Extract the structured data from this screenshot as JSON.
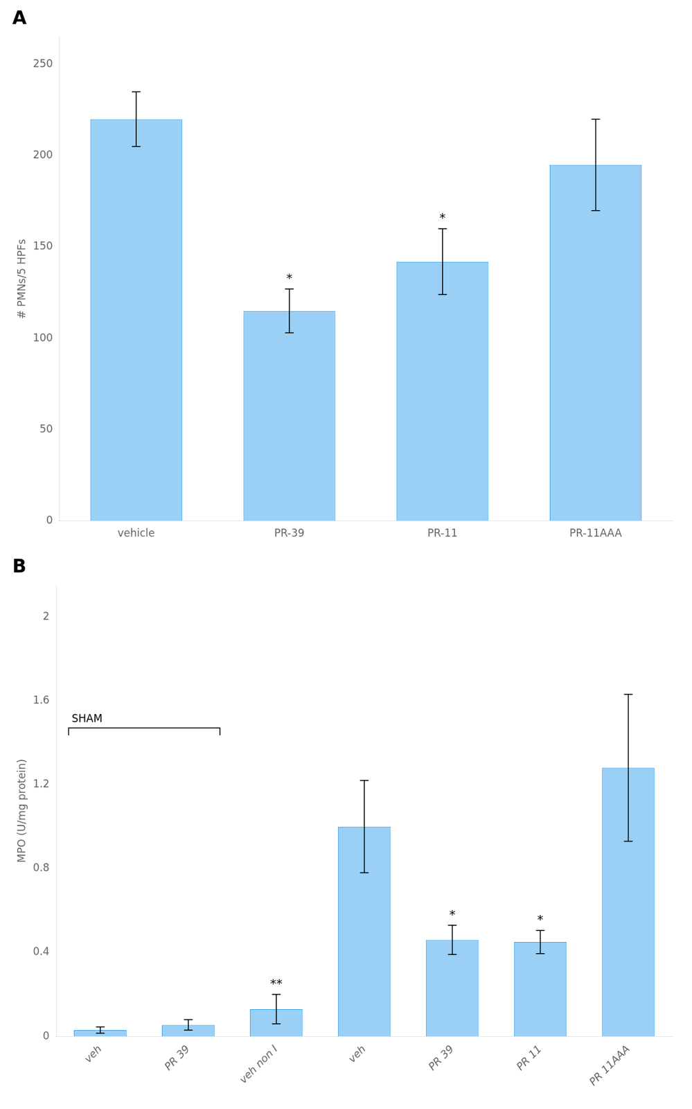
{
  "chart_data": [
    {
      "type": "bar",
      "panel_label": "A",
      "categories": [
        "vehicle",
        "PR-39",
        "PR-11",
        "PR-11AAA"
      ],
      "values": [
        220,
        115,
        142,
        195
      ],
      "errors": [
        15,
        12,
        18,
        25
      ],
      "annotations": [
        null,
        "*",
        "*",
        null
      ],
      "ylabel": "# PMNs/5 HPFs",
      "ylim": [
        0,
        265
      ],
      "yticks": [
        0,
        50,
        100,
        150,
        200,
        250
      ],
      "grid": false,
      "legend": false
    },
    {
      "type": "bar",
      "panel_label": "B",
      "categories": [
        "veh",
        "PR 39",
        "veh non I",
        "veh",
        "PR 39",
        "PR 11",
        "PR 11AAA"
      ],
      "values": [
        0.03,
        0.055,
        0.13,
        1.0,
        0.46,
        0.45,
        1.28
      ],
      "errors": [
        0.015,
        0.025,
        0.07,
        0.22,
        0.07,
        0.055,
        0.35
      ],
      "annotations": [
        null,
        null,
        "**",
        null,
        "*",
        "*",
        null
      ],
      "bracket": {
        "text": "SHAM",
        "y": 1.47,
        "span": [
          0,
          1
        ]
      },
      "ylabel": "MPO (U/mg protein)",
      "ylim": [
        0,
        2.15
      ],
      "yticks": [
        0,
        0.4,
        0.8,
        1.2,
        1.6,
        2
      ],
      "grid": false,
      "legend": false
    }
  ]
}
